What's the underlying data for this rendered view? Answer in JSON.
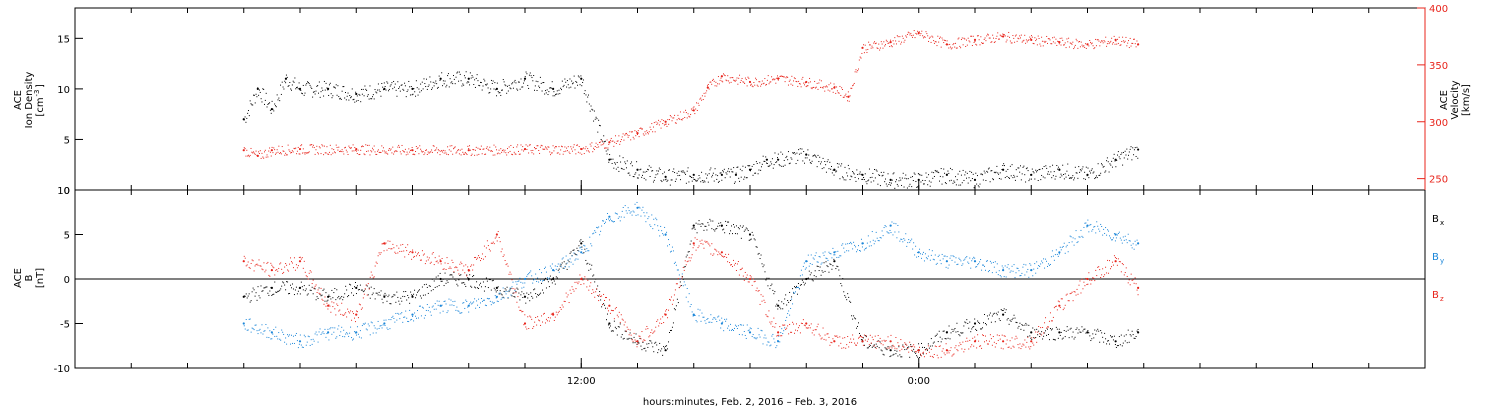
{
  "chart_data": [
    {
      "type": "scatter",
      "panel": "plasma",
      "ylabel_left": [
        "ACE",
        "Ion Density",
        "[cm",
        "-3",
        "]"
      ],
      "ylabel_right": [
        "ACE",
        "Velocity",
        "[km/s]"
      ],
      "ylim_left": [
        0,
        18
      ],
      "ylim_right": [
        240,
        400
      ],
      "yticks_left": [
        "0",
        "5",
        "10",
        "15"
      ],
      "yticks_right": [
        "250",
        "300",
        "350",
        "400"
      ],
      "series": [
        {
          "axis": "left",
          "color": "#000000",
          "x_hours": [
            0,
            0.5,
            1,
            1.5,
            2,
            3,
            4,
            5,
            6,
            7,
            8,
            9,
            10,
            11,
            12,
            13,
            14,
            15,
            16,
            17,
            17.5,
            18,
            18.6,
            19,
            20,
            21,
            22,
            23,
            24,
            25,
            26,
            27,
            28,
            29,
            30,
            31,
            31.8
          ],
          "values": [
            7,
            10,
            8,
            11,
            10,
            10,
            9.5,
            10,
            10,
            11,
            11,
            10,
            11,
            10,
            11,
            3,
            2,
            1.3,
            1.5,
            1.5,
            1.5,
            2,
            3,
            3,
            3.5,
            2,
            1.5,
            1,
            1,
            1.5,
            1,
            2,
            1.5,
            2,
            1.5,
            3,
            4
          ]
        },
        {
          "axis": "right",
          "color": "#e8241b",
          "x_hours": [
            0,
            0.5,
            1,
            2,
            4,
            6,
            8,
            10,
            12,
            13,
            14,
            15,
            16,
            16.5,
            17,
            18,
            19,
            20,
            21,
            21.5,
            22,
            23,
            24,
            25,
            26,
            27,
            28,
            29,
            30,
            31,
            31.8
          ],
          "values": [
            275,
            270,
            275,
            276,
            276,
            275,
            275,
            276,
            276,
            282,
            290,
            300,
            310,
            330,
            340,
            335,
            338,
            335,
            330,
            322,
            365,
            370,
            378,
            368,
            372,
            375,
            372,
            370,
            368,
            372,
            368
          ]
        }
      ]
    },
    {
      "type": "scatter",
      "panel": "magnetic-field",
      "ylabel_left": [
        "ACE",
        "B",
        "[nT]"
      ],
      "ylim": [
        -10,
        10
      ],
      "yticks": [
        "-10",
        "-5",
        "0",
        "5",
        "10"
      ],
      "legend": [
        "B",
        "B",
        "B"
      ],
      "legend_sub": [
        "x",
        "y",
        "z"
      ],
      "series": [
        {
          "name": "B",
          "color": "#000000",
          "x_hours": [
            0,
            1,
            2,
            3,
            4,
            5,
            6,
            7,
            8,
            9,
            10,
            11,
            12,
            13,
            14,
            15,
            16,
            17,
            18,
            19,
            20,
            21,
            22,
            23,
            24,
            25,
            26,
            27,
            28,
            29,
            30,
            31,
            31.8
          ],
          "values": [
            -2,
            -1,
            -1,
            -2,
            -1,
            -2,
            -2,
            0,
            0,
            -1,
            -2,
            0,
            4,
            -5,
            -7,
            -8,
            6,
            6,
            5,
            -3,
            0,
            2,
            -7,
            -8,
            -8,
            -6,
            -5,
            -4,
            -6,
            -6,
            -6,
            -7,
            -6
          ]
        },
        {
          "name": "B",
          "color": "#1b86d9",
          "x_hours": [
            0,
            1,
            2,
            3,
            4,
            5,
            6,
            7,
            8,
            9,
            10,
            11,
            12,
            13,
            14,
            15,
            16,
            17,
            18,
            19,
            20,
            21,
            22,
            23,
            24,
            25,
            26,
            27,
            28,
            29,
            30,
            31,
            31.8
          ],
          "values": [
            -5,
            -6,
            -7,
            -6,
            -6,
            -5,
            -4,
            -3,
            -3,
            -2,
            0,
            1,
            3,
            7,
            8,
            5,
            -4,
            -5,
            -6,
            -7,
            2,
            3,
            4,
            6,
            3,
            2,
            2,
            1,
            1,
            3,
            6,
            5,
            4
          ]
        },
        {
          "name": "B",
          "color": "#e8241b",
          "x_hours": [
            0,
            1,
            2,
            3,
            4,
            5,
            6,
            7,
            8,
            9,
            10,
            11,
            12,
            13,
            14,
            15,
            16,
            17,
            18,
            19,
            20,
            21,
            22,
            23,
            24,
            25,
            26,
            27,
            28,
            29,
            30,
            31,
            31.8
          ],
          "values": [
            2,
            1,
            2,
            -3,
            -4,
            4,
            3,
            2,
            1,
            5,
            -5,
            -4,
            0,
            -3,
            -7,
            -4,
            4,
            3,
            0,
            -6,
            -5,
            -7,
            -7,
            -7,
            -8,
            -8,
            -7,
            -7,
            -7,
            -3,
            0,
            2,
            -1
          ]
        }
      ]
    }
  ],
  "x_axis": {
    "label": "hours:minutes, Feb.  2, 2016 – Feb.  3, 2016",
    "ticks": [
      {
        "hour": 12,
        "label": "12:00"
      },
      {
        "hour": 24,
        "label": "0:00"
      }
    ]
  }
}
